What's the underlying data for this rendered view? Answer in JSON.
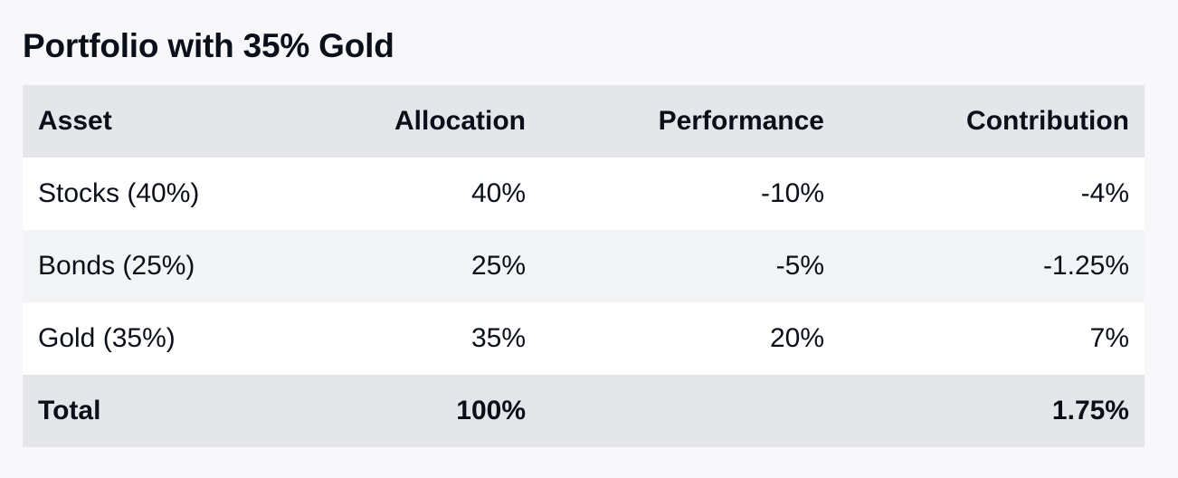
{
  "title": "Portfolio with 35% Gold",
  "table": {
    "headers": {
      "asset": "Asset",
      "allocation": "Allocation",
      "performance": "Performance",
      "contribution": "Contribution"
    },
    "rows": [
      {
        "asset": "Stocks (40%)",
        "allocation": "40%",
        "performance": "-10%",
        "contribution": "-4%"
      },
      {
        "asset": "Bonds (25%)",
        "allocation": "25%",
        "performance": "-5%",
        "contribution": "-1.25%"
      },
      {
        "asset": "Gold (35%)",
        "allocation": "35%",
        "performance": "20%",
        "contribution": "7%"
      }
    ],
    "total": {
      "label": "Total",
      "allocation": "100%",
      "performance": "",
      "contribution": "1.75%"
    }
  }
}
